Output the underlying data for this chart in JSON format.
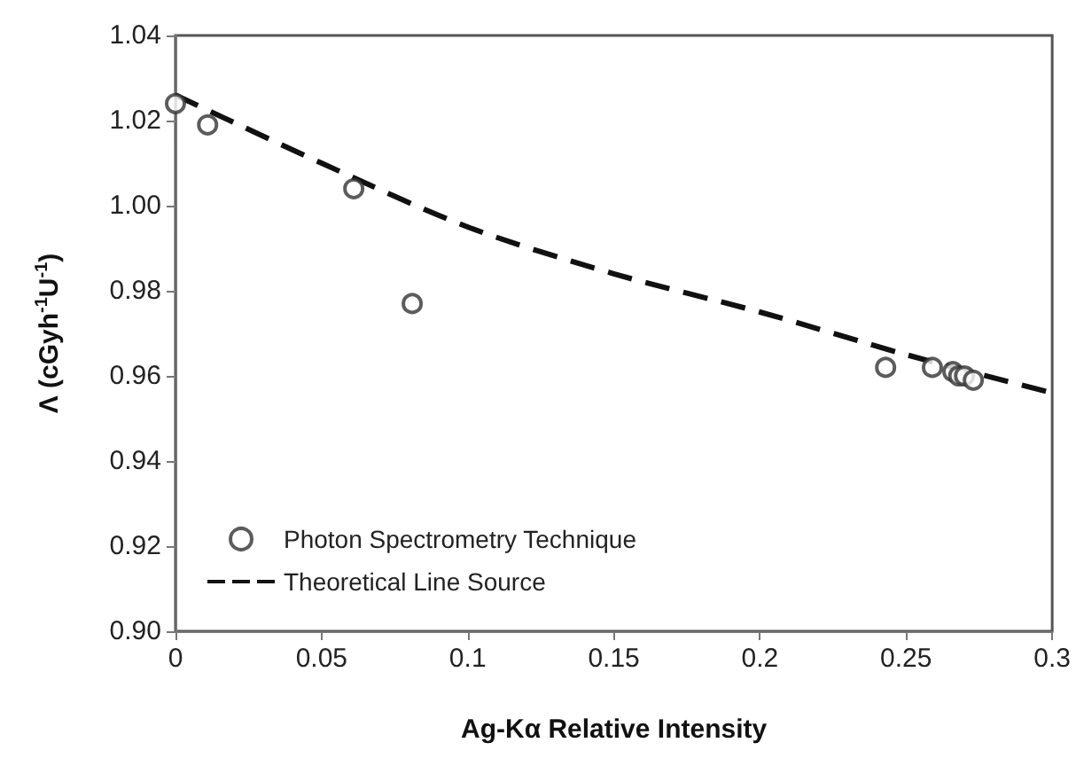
{
  "chart_data": {
    "type": "scatter",
    "xlabel": "Ag-Kα Relative Intensity",
    "ylabel": "Λ (cGyh$^{-1}$U$^{-1}$)",
    "xlim": [
      0,
      0.3
    ],
    "xticks": [
      0,
      0.05,
      0.1,
      0.15,
      0.2,
      0.25,
      0.3
    ],
    "ylim": [
      0.9,
      1.04
    ],
    "yticks": [
      {
        "value": 0.9,
        "label": "0.90"
      },
      {
        "value": 0.92,
        "label": "0.92"
      },
      {
        "value": 0.94,
        "label": "0.94"
      },
      {
        "value": 0.96,
        "label": "0.96"
      },
      {
        "value": 0.98,
        "label": "0.98"
      },
      {
        "value": 1.0,
        "label": "1.00"
      },
      {
        "value": 1.02,
        "label": "1.02"
      },
      {
        "value": 1.04,
        "label": "1.04"
      }
    ],
    "grid": false,
    "legend": "bottom left",
    "series": [
      {
        "name": "Photon Spectrometry Technique",
        "marker": "circle",
        "color": "#333333",
        "x": [
          0,
          0.011,
          0.061,
          0.081,
          0.243,
          0.259,
          0.266,
          0.268,
          0.27,
          0.273
        ],
        "values": [
          1.024,
          1.019,
          1.004,
          0.977,
          0.962,
          0.962,
          0.961,
          0.96,
          0.96,
          0.959
        ]
      },
      {
        "name": "Theoretical Line Source",
        "type": "line",
        "marker": "none",
        "line_style": "dashed",
        "color": "#111111",
        "x": [
          0,
          0.05,
          0.1,
          0.15,
          0.2,
          0.25,
          0.3
        ],
        "values": [
          1.026,
          1.01,
          0.995,
          0.984,
          0.975,
          0.965,
          0.956
        ]
      }
    ]
  }
}
